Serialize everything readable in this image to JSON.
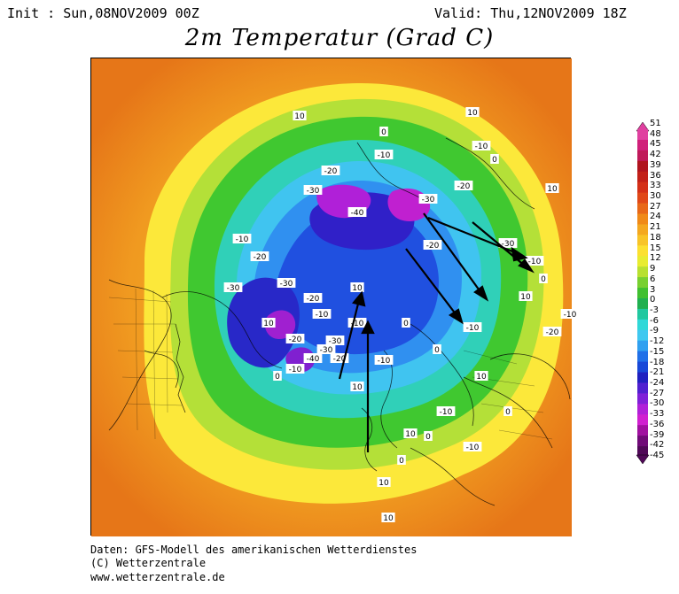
{
  "header": {
    "init_text": "Init : Sun,08NOV2009 00Z",
    "valid_text": "Valid: Thu,12NOV2009 18Z",
    "title": "2m Temperatur (Grad C)"
  },
  "scale": {
    "ticks": [
      "51",
      "48",
      "45",
      "42",
      "39",
      "36",
      "33",
      "30",
      "27",
      "24",
      "21",
      "18",
      "15",
      "12",
      "9",
      "6",
      "3",
      "0",
      "-3",
      "-6",
      "-9",
      "-12",
      "-15",
      "-18",
      "-21",
      "-24",
      "-27",
      "-30",
      "-33",
      "-36",
      "-39",
      "-42",
      "-45"
    ],
    "colors": [
      "#e040a0",
      "#d0207a",
      "#c01a5a",
      "#b0141e",
      "#c22018",
      "#d43018",
      "#e04818",
      "#e86818",
      "#f08a18",
      "#f4a820",
      "#f8c428",
      "#fce030",
      "#e8ec30",
      "#b8e030",
      "#78d030",
      "#40c030",
      "#20b050",
      "#20c8a0",
      "#30d8d8",
      "#40c8f0",
      "#30a0f0",
      "#2070e8",
      "#1848d8",
      "#2020c0",
      "#5020d0",
      "#8020d8",
      "#b020d8",
      "#d020d0",
      "#a010a0",
      "#700a78",
      "#500858"
    ],
    "colors_description": "warm orange/red for positive, green near 0, cyan/blue/purple for negative"
  },
  "map": {
    "isotherm_labels": [
      "10",
      "0",
      "-10",
      "-20",
      "-30",
      "-40",
      "10",
      "-10",
      "-20",
      "-30",
      "0",
      "10",
      "-10",
      "-20",
      "-30",
      "-30",
      "-20",
      "-10",
      "0",
      "10",
      "-10",
      "-20",
      "-30",
      "-40",
      "-30",
      "-20",
      "-10",
      "0",
      "10",
      "-10",
      "-20",
      "-30",
      "-10",
      "0",
      "10",
      "-10",
      "-20",
      "-10",
      "0",
      "10",
      "0",
      "-10",
      "10",
      "0",
      "10",
      "10",
      "0",
      "-10",
      "10"
    ],
    "arrows_description": "black arrows indicating cold air flow"
  },
  "footer": {
    "line1": "Daten: GFS-Modell des amerikanischen Wetterdienstes",
    "line2": "(C) Wetterzentrale",
    "line3": "www.wetterzentrale.de"
  }
}
